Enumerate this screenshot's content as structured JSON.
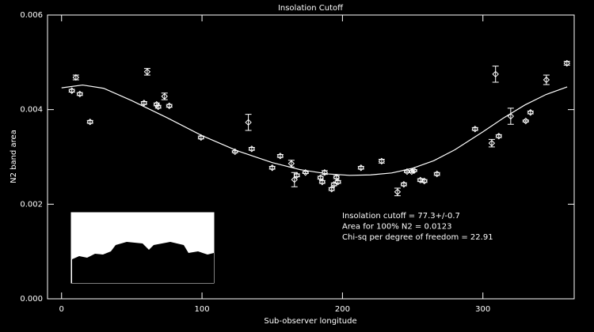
{
  "chart_data": {
    "type": "scatter",
    "title": "Insolation Cutoff",
    "x_label": "Sub-observer longitude",
    "y_label": "N2 band area",
    "xlim": [
      -10,
      365
    ],
    "ylim": [
      0,
      0.006
    ],
    "xticks": [
      0,
      100,
      200,
      300
    ],
    "yticks": [
      {
        "value": 0,
        "label": "0.000"
      },
      {
        "value": 0.002,
        "label": "0.002"
      },
      {
        "value": 0.004,
        "label": "0.004"
      },
      {
        "value": 0.006,
        "label": "0.006"
      }
    ],
    "annotations": [
      "Insolation cutoff = 77.3+/-0.7",
      "Area for 100% N2 = 0.0123",
      "Chi-sq per degree of freedom = 22.91"
    ],
    "series": [
      {
        "color": "#ffffff",
        "marker": "diamond",
        "x": [
          7.3,
          10.2,
          13,
          20.3,
          58.7,
          61,
          67.7,
          68.8,
          73.3,
          76.7,
          99.3,
          123.5,
          133,
          135.4,
          150,
          155.7,
          163.6,
          165.8,
          167.5,
          173.7,
          184.4,
          185.6,
          187.3,
          192.3,
          194,
          195.7,
          196.8,
          213.2,
          227.9,
          239.2,
          243.7,
          246,
          249.3,
          251,
          255.5,
          258.3,
          267.3,
          294.4,
          306.3,
          311.3,
          309,
          319.8,
          330.5,
          333.9,
          345.2,
          359.8
        ],
        "values": [
          0.0044,
          0.00468,
          0.00433,
          0.00374,
          0.00414,
          0.0048,
          0.00411,
          0.00406,
          0.00428,
          0.00408,
          0.00341,
          0.00311,
          0.00373,
          0.00317,
          0.00277,
          0.00302,
          0.00286,
          0.00252,
          0.00261,
          0.00267,
          0.00256,
          0.00247,
          0.00267,
          0.00232,
          0.00242,
          0.00257,
          0.00247,
          0.00277,
          0.00291,
          0.00226,
          0.00242,
          0.00269,
          0.00269,
          0.00271,
          0.00251,
          0.00249,
          0.00264,
          0.00359,
          0.00329,
          0.00344,
          0.00475,
          0.00386,
          0.00376,
          0.00394,
          0.00463,
          0.00498
        ],
        "errors": [
          3e-05,
          5e-05,
          3e-05,
          3e-05,
          3e-05,
          7e-05,
          3e-05,
          3e-05,
          7e-05,
          3e-05,
          3e-05,
          2e-05,
          0.00017,
          3e-05,
          3e-05,
          3e-05,
          7e-05,
          0.00015,
          3e-05,
          2e-05,
          3e-05,
          3e-05,
          4e-05,
          3e-05,
          3e-05,
          3e-05,
          3e-05,
          3e-05,
          4e-05,
          8e-05,
          3e-05,
          2e-05,
          2e-05,
          2e-05,
          3e-05,
          3e-05,
          3e-05,
          3e-05,
          8e-05,
          3e-05,
          0.00017,
          0.00017,
          2e-05,
          3e-05,
          0.0001,
          4e-05
        ]
      },
      {
        "color": "#ffffff",
        "line": true,
        "x": [
          0,
          15,
          30,
          50,
          75,
          100,
          125,
          150,
          170,
          190,
          205,
          220,
          235,
          250,
          265,
          280,
          300,
          315,
          330,
          345,
          360
        ],
        "values": [
          0.00446,
          0.00452,
          0.00445,
          0.00419,
          0.00383,
          0.00345,
          0.00313,
          0.00288,
          0.00273,
          0.00264,
          0.00261,
          0.00262,
          0.00266,
          0.00276,
          0.00292,
          0.00315,
          0.00353,
          0.00383,
          0.0041,
          0.00432,
          0.00448
        ]
      }
    ]
  }
}
